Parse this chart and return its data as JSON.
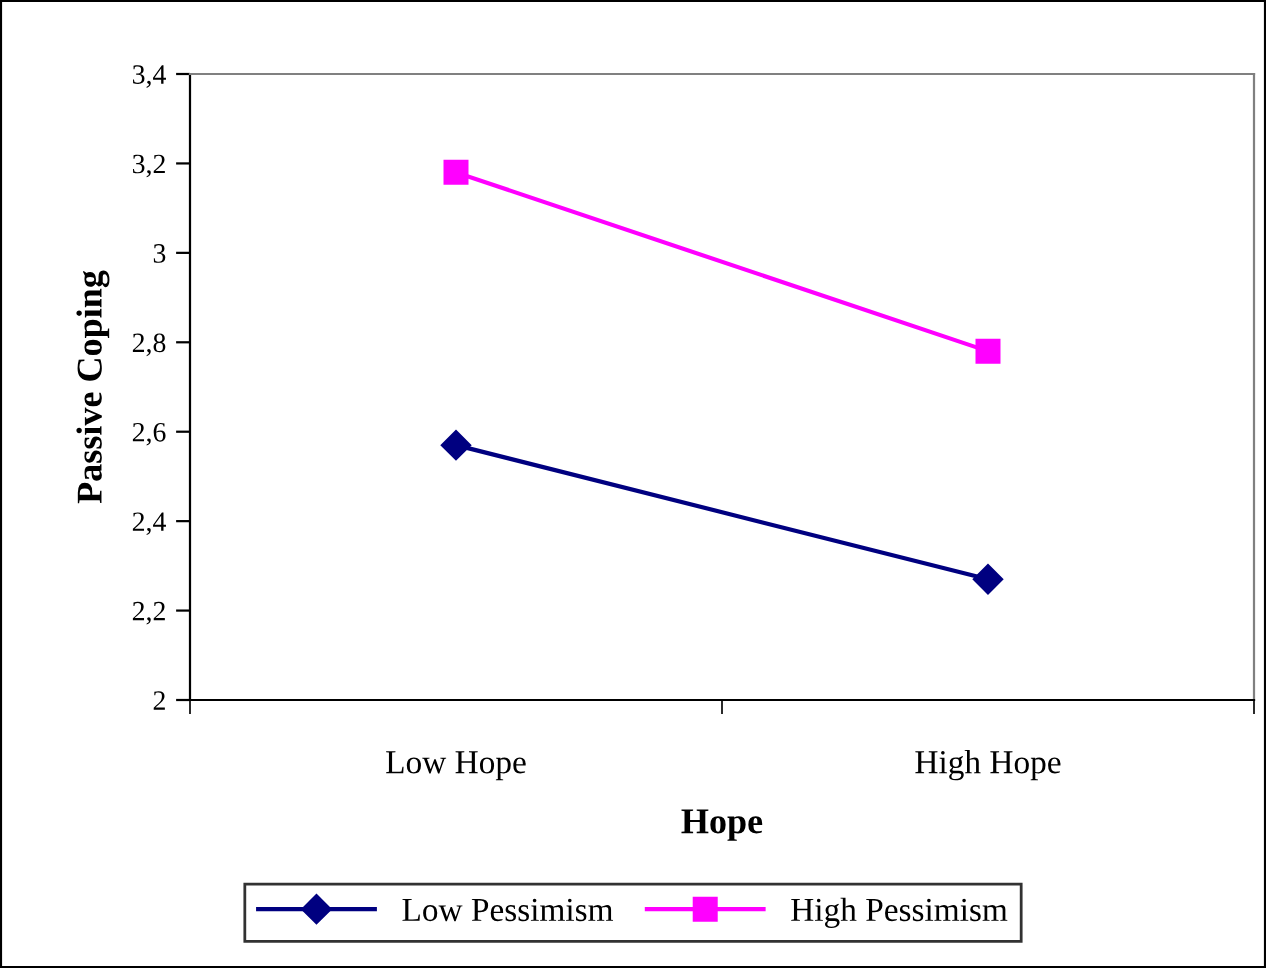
{
  "chart_data": {
    "type": "line",
    "xlabel": "Hope",
    "ylabel": "Passive Coping",
    "categories": [
      "Low Hope",
      "High Hope"
    ],
    "series": [
      {
        "name": "Low Pessimism",
        "color": "#000080",
        "marker": "diamond",
        "values": [
          2.57,
          2.27
        ]
      },
      {
        "name": "High Pessimism",
        "color": "#ff00ff",
        "marker": "square",
        "values": [
          3.18,
          2.78
        ]
      }
    ],
    "ylim": [
      2,
      3.4
    ],
    "yticks": [
      {
        "value": 2,
        "label": "2"
      },
      {
        "value": 2.2,
        "label": "2,2"
      },
      {
        "value": 2.4,
        "label": "2,4"
      },
      {
        "value": 2.6,
        "label": "2,6"
      },
      {
        "value": 2.8,
        "label": "2,8"
      },
      {
        "value": 3,
        "label": "3"
      },
      {
        "value": 3.2,
        "label": "3,2"
      },
      {
        "value": 3.4,
        "label": "3,4"
      }
    ],
    "grid": false,
    "legend": "bottom",
    "line_style": "solid"
  }
}
